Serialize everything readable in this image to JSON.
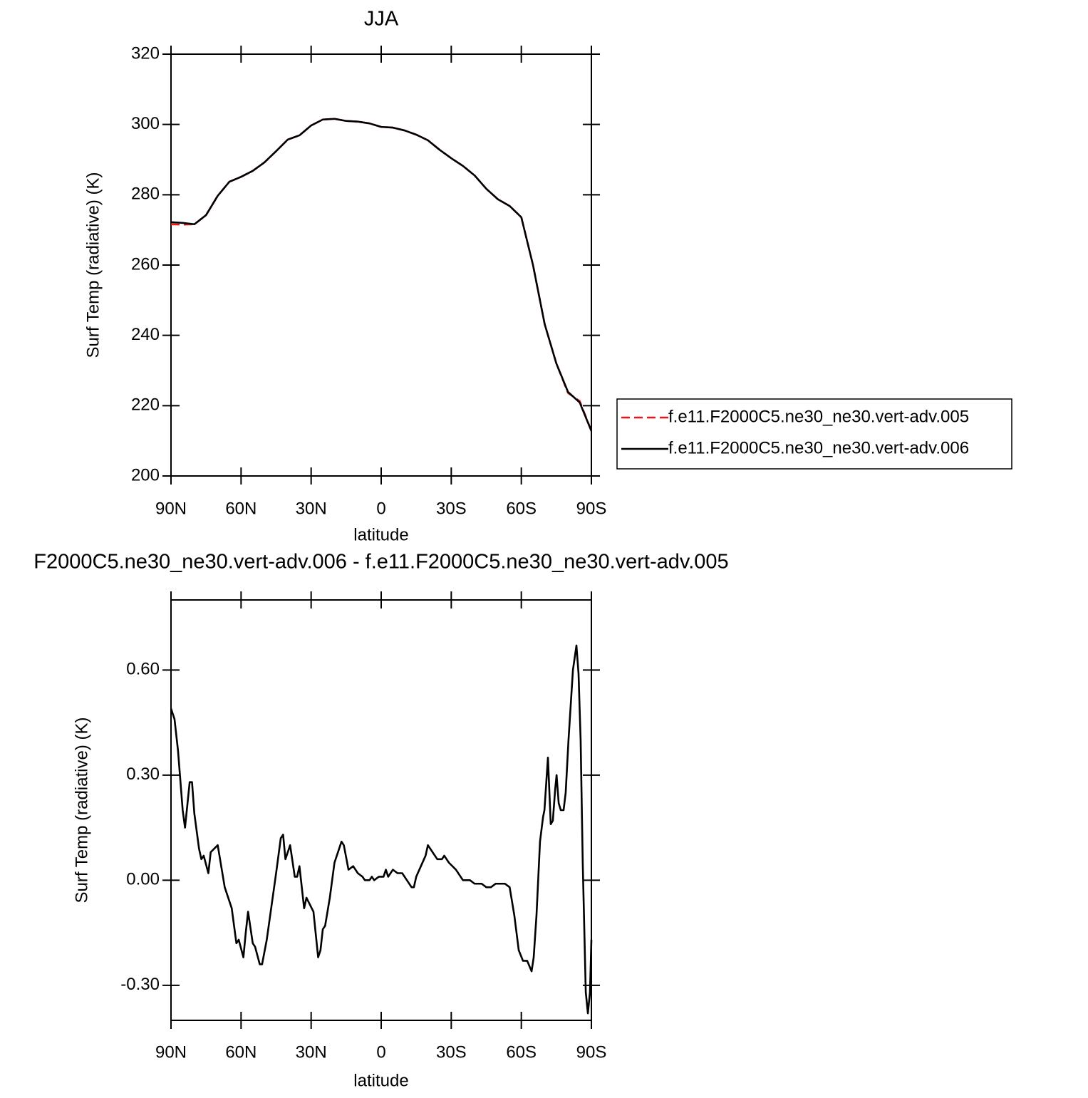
{
  "chart_data": [
    {
      "type": "line",
      "title": "JJA",
      "xlabel": "latitude",
      "ylabel": "Surf Temp (radiative) (K)",
      "x": [
        90,
        85,
        80,
        75,
        70,
        65,
        60,
        55,
        50,
        45,
        40,
        35,
        30,
        25,
        20,
        15,
        10,
        5,
        0,
        -5,
        -10,
        -15,
        -20,
        -25,
        -30,
        -35,
        -40,
        -45,
        -50,
        -55,
        -60,
        -65,
        -70,
        -75,
        -80,
        -85,
        -90
      ],
      "series": [
        {
          "name": "f.e11.F2000C5.ne30_ne30.vert-adv.005",
          "color": "#e8161b",
          "line_style": "dashed",
          "values": [
            271.6,
            271.5,
            271.6,
            274.2,
            279.7,
            283.7,
            285.1,
            286.8,
            289.2,
            292.4,
            295.7,
            296.9,
            299.7,
            301.4,
            301.6,
            301,
            300.8,
            300.3,
            299.3,
            299.1,
            298.3,
            297.1,
            295.5,
            292.8,
            290.4,
            288.2,
            285.5,
            281.7,
            278.7,
            276.8,
            273.6,
            260,
            243.2,
            232,
            223.6,
            221.3,
            212.8
          ]
        },
        {
          "name": "f.e11.F2000C5.ne30_ne30.vert-adv.006",
          "color": "#000000",
          "line_style": "solid",
          "values": [
            272.2,
            272,
            271.6,
            274.2,
            279.7,
            283.7,
            285.1,
            286.8,
            289.2,
            292.4,
            295.7,
            296.9,
            299.7,
            301.4,
            301.6,
            301,
            300.8,
            300.3,
            299.3,
            299.1,
            298.3,
            297.1,
            295.5,
            292.8,
            290.4,
            288.2,
            285.5,
            281.7,
            278.7,
            276.8,
            273.6,
            260,
            243.2,
            232,
            223.9,
            220.9,
            212.8
          ]
        }
      ],
      "xlim": [
        90,
        -90
      ],
      "xticks": [
        {
          "value": 90,
          "label": "90N"
        },
        {
          "value": 60,
          "label": "60N"
        },
        {
          "value": 30,
          "label": "30N"
        },
        0,
        {
          "value": -30,
          "label": "30S"
        },
        {
          "value": -60,
          "label": "60S"
        },
        {
          "value": -90,
          "label": "90S"
        }
      ],
      "ylim": [
        200,
        320
      ],
      "yticks": [
        200,
        220,
        240,
        260,
        280,
        300,
        320
      ],
      "legend": "right"
    },
    {
      "type": "line",
      "title": "F2000C5.ne30_ne30.vert-adv.006 - f.e11.F2000C5.ne30_ne30.vert-adv.005",
      "xlabel": "latitude",
      "ylabel": "Surf Temp (radiative) (K)",
      "x": [
        90,
        88.5,
        87,
        85,
        84,
        82,
        81,
        80,
        78,
        77,
        76,
        74,
        73,
        70,
        67,
        64,
        62,
        61,
        59,
        58,
        57,
        55,
        54,
        52,
        51,
        49,
        45,
        43,
        42,
        41,
        39,
        37,
        36,
        35,
        33,
        32,
        29,
        27,
        26,
        25,
        24,
        22,
        20,
        18,
        17,
        16,
        14,
        12,
        10,
        8,
        7,
        5,
        4,
        3,
        1,
        -1,
        -2,
        -3,
        -5,
        -7,
        -9,
        -11,
        -13,
        -14,
        -15,
        -17,
        -19,
        -20,
        -22,
        -24,
        -26,
        -27,
        -29,
        -32,
        -35,
        -38,
        -40,
        -43,
        -45,
        -47,
        -49,
        -51,
        -53,
        -55,
        -57,
        -58.9,
        -60.7,
        -62.5,
        -64.4,
        -65.3,
        -66.5,
        -68,
        -69.3,
        -69.9,
        -71.4,
        -72.6,
        -73.5,
        -74.5,
        -75.1,
        -76,
        -76.9,
        -78.1,
        -79,
        -80.2,
        -82.1,
        -83.6,
        -84.5,
        -85.4,
        -86.3,
        -87.6,
        -88.5,
        -89.4,
        -90
      ],
      "series": [
        {
          "color": "#000000",
          "line_style": "solid",
          "values": [
            0.49,
            0.46,
            0.37,
            0.2,
            0.15,
            0.28,
            0.28,
            0.19,
            0.09,
            0.06,
            0.07,
            0.02,
            0.08,
            0.1,
            -0.02,
            -0.08,
            -0.18,
            -0.17,
            -0.22,
            -0.15,
            -0.09,
            -0.18,
            -0.19,
            -0.24,
            -0.24,
            -0.17,
            0.02,
            0.12,
            0.13,
            0.06,
            0.1,
            0.01,
            0.01,
            0.04,
            -0.08,
            -0.05,
            -0.09,
            -0.22,
            -0.2,
            -0.14,
            -0.13,
            -0.05,
            0.05,
            0.09,
            0.11,
            0.1,
            0.03,
            0.04,
            0.02,
            0.01,
            0,
            0,
            0.01,
            0,
            0.01,
            0.01,
            0.03,
            0.01,
            0.03,
            0.02,
            0.02,
            0,
            -0.02,
            -0.02,
            0.01,
            0.04,
            0.07,
            0.1,
            0.08,
            0.06,
            0.06,
            0.07,
            0.05,
            0.03,
            0,
            0,
            -0.01,
            -0.01,
            -0.02,
            -0.02,
            -0.01,
            -0.01,
            -0.01,
            -0.02,
            -0.1,
            -0.2,
            -0.23,
            -0.23,
            -0.26,
            -0.22,
            -0.1,
            0.11,
            0.18,
            0.2,
            0.35,
            0.16,
            0.17,
            0.26,
            0.3,
            0.22,
            0.2,
            0.2,
            0.25,
            0.4,
            0.6,
            0.67,
            0.59,
            0.4,
            0.05,
            -0.32,
            -0.38,
            -0.32,
            -0.17
          ]
        }
      ],
      "xlim": [
        90,
        -90
      ],
      "xticks": [
        {
          "value": 90,
          "label": "90N"
        },
        {
          "value": 60,
          "label": "60N"
        },
        {
          "value": 30,
          "label": "30N"
        },
        0,
        {
          "value": -30,
          "label": "30S"
        },
        {
          "value": -60,
          "label": "60S"
        },
        {
          "value": -90,
          "label": "90S"
        }
      ],
      "ylim": [
        -0.4,
        0.8
      ],
      "yticks": [
        {
          "value": -0.3,
          "label": "-0.30"
        },
        {
          "value": 0,
          "label": "0.00"
        },
        {
          "value": 0.3,
          "label": "0.30"
        },
        {
          "value": 0.6,
          "label": "0.60"
        }
      ]
    }
  ]
}
